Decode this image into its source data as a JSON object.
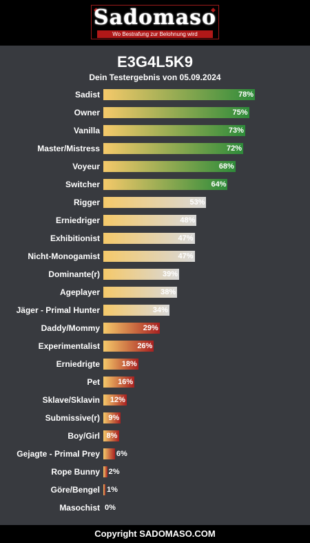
{
  "header": {
    "logo_text": "Sadomaso",
    "logo_tagline": "Wo Bestrafung zur Belohnung wird"
  },
  "result": {
    "code": "E3G4L5K9",
    "date_line": "Dein Testergebnis von 05.09.2024"
  },
  "footer": {
    "copyright": "Copyright SADOMASO.COM"
  },
  "colors": {
    "background": "#383a3f",
    "bar_start": "#f5c96a",
    "high": "#2e8b3a",
    "mid": "#d8d8d8",
    "low": "#a82020"
  },
  "chart_data": {
    "type": "bar",
    "orientation": "horizontal",
    "categories": [
      "Sadist",
      "Owner",
      "Vanilla",
      "Master/Mistress",
      "Voyeur",
      "Switcher",
      "Rigger",
      "Erniedriger",
      "Exhibitionist",
      "Nicht-Monogamist",
      "Dominante(r)",
      "Ageplayer",
      "Jäger - Primal Hunter",
      "Daddy/Mommy",
      "Experimentalist",
      "Erniedrigte",
      "Pet",
      "Sklave/Sklavin",
      "Submissive(r)",
      "Boy/Girl",
      "Gejagte - Primal Prey",
      "Rope Bunny",
      "Göre/Bengel",
      "Masochist"
    ],
    "values": [
      78,
      75,
      73,
      72,
      68,
      64,
      53,
      48,
      47,
      47,
      39,
      38,
      34,
      29,
      26,
      18,
      16,
      12,
      9,
      8,
      6,
      2,
      1,
      0
    ],
    "labels": [
      "78%",
      "75%",
      "73%",
      "72%",
      "68%",
      "64%",
      "53%",
      "48%",
      "47%",
      "47%",
      "39%",
      "38%",
      "34%",
      "29%",
      "26%",
      "18%",
      "16%",
      "12%",
      "9%",
      "8%",
      "6%",
      "2%",
      "1%",
      "0%"
    ],
    "xlim": [
      0,
      100
    ]
  }
}
